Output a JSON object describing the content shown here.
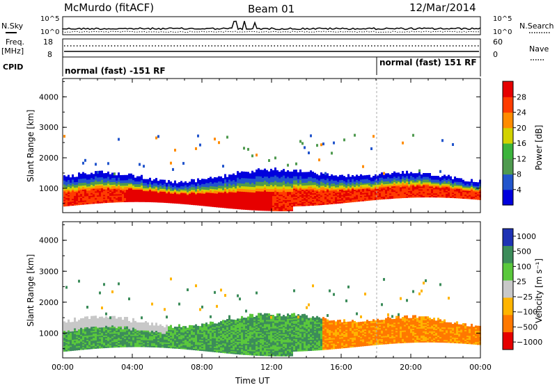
{
  "header": {
    "station": "McMurdo (fitACF)",
    "beam": "Beam 01",
    "date": "12/Mar/2014"
  },
  "top_panels": {
    "nsky_label": "N.Sky",
    "nsearch_label": "N.Search",
    "left_ticks_noise": [
      "10^5",
      "10^0"
    ],
    "right_ticks_noise": [
      "10^5",
      "10^0"
    ],
    "freq_label_1": "Freq.",
    "freq_label_2": "[MHz]",
    "freq_ticks": [
      "18",
      "8"
    ],
    "nave_label": "Nave",
    "nave_ticks": [
      "60",
      "0"
    ],
    "cpid_label": "CPID",
    "cpid_segments": [
      "normal (fast) -151 RF",
      "normal (fast) 151 RF"
    ]
  },
  "colors": {
    "power": [
      "#0000dd",
      "#2255cc",
      "#4f9a4f",
      "#3cb43c",
      "#d2d200",
      "#ff8c00",
      "#ff3c00",
      "#e60000"
    ],
    "velocity": [
      "#1e32b4",
      "#3c8c5a",
      "#5ac83c",
      "#c8c8c8",
      "#ffb400",
      "#ff7800",
      "#e60000"
    ]
  },
  "chart_data": [
    {
      "type": "heatmap",
      "title": "Power",
      "xlabel": "",
      "ylabel": "Slant Range [km]",
      "x_ticks": [
        "00:00",
        "04:00",
        "08:00",
        "12:00",
        "16:00",
        "20:00",
        "00:00"
      ],
      "y_ticks": [
        "1000",
        "2000",
        "3000",
        "4000"
      ],
      "ylim": [
        200,
        4600
      ],
      "colorbar_label": "Power [dB]",
      "colorbar_ticks": [
        "4",
        "8",
        "12",
        "16",
        "20",
        "24",
        "28"
      ],
      "colorbar_range": [
        0,
        32
      ]
    },
    {
      "type": "heatmap",
      "title": "Velocity",
      "xlabel": "Time UT",
      "ylabel": "Slant Range [km]",
      "x_ticks": [
        "00:00",
        "04:00",
        "08:00",
        "12:00",
        "16:00",
        "20:00",
        "00:00"
      ],
      "y_ticks": [
        "1000",
        "2000",
        "3000",
        "4000"
      ],
      "ylim": [
        200,
        4600
      ],
      "colorbar_label": "Velocity [m s⁻¹]",
      "colorbar_ticks": [
        "1000",
        "500",
        "100",
        "25",
        "−25",
        "−100",
        "−500",
        "−1000"
      ]
    }
  ]
}
